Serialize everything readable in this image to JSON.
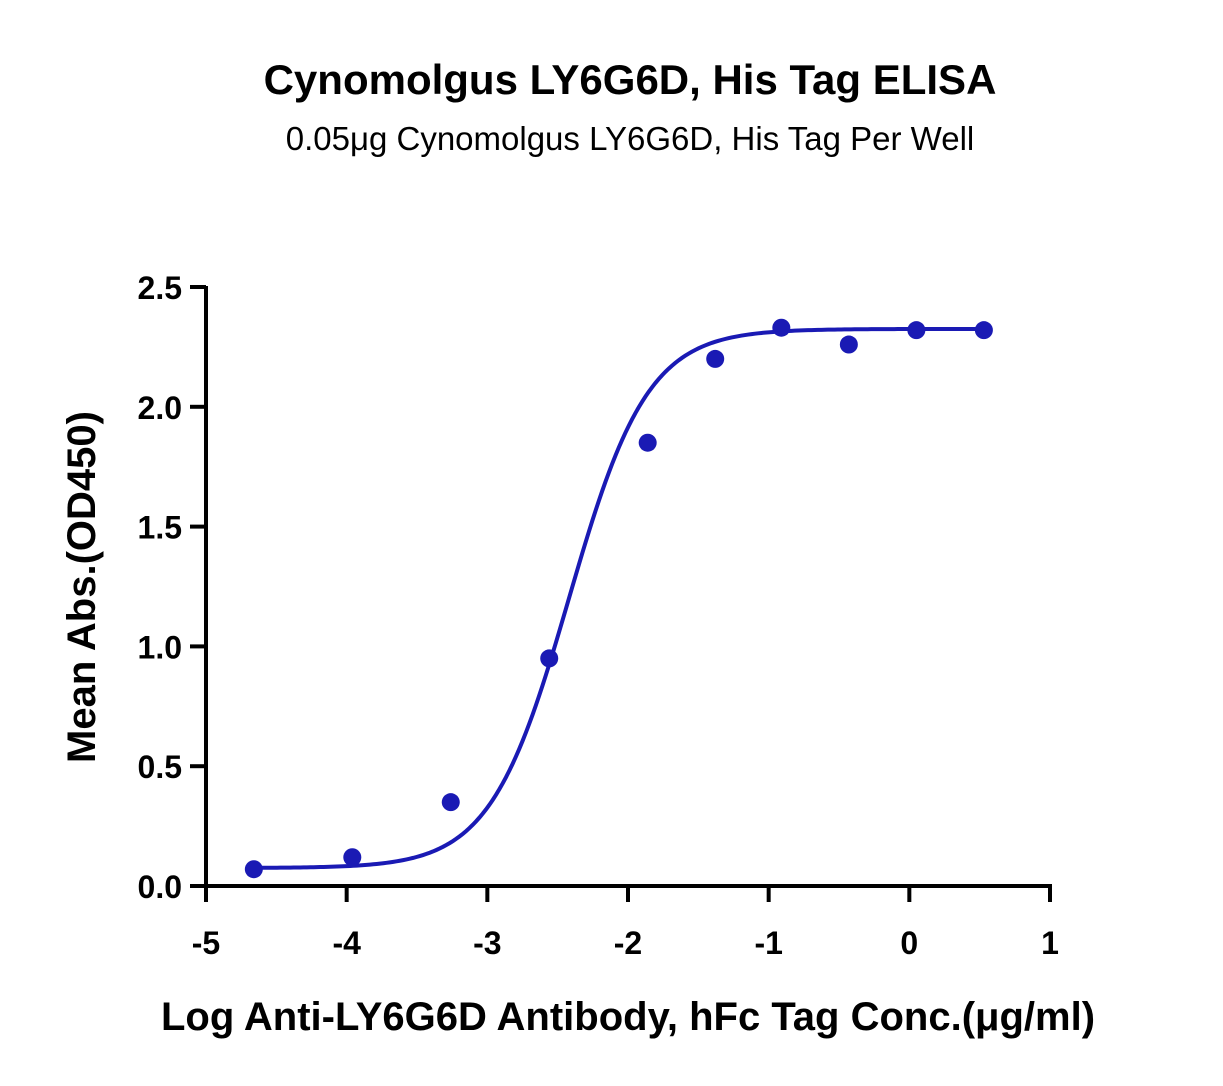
{
  "chart_data": {
    "type": "scatter",
    "title": "Cynomolgus LY6G6D, His Tag ELISA",
    "subtitle": "0.05μg Cynomolgus LY6G6D, His Tag Per Well",
    "xlabel": "Log Anti-LY6G6D Antibody, hFc Tag Conc.(μg/ml)",
    "ylabel": "Mean Abs.(OD450)",
    "xlim": [
      -5,
      1
    ],
    "ylim": [
      0,
      2.5
    ],
    "x_ticks": [
      -5,
      -4,
      -3,
      -2,
      -1,
      0,
      1
    ],
    "x_tick_labels": [
      "-5",
      "-4",
      "-3",
      "-2",
      "-1",
      "0",
      "1"
    ],
    "y_ticks": [
      0,
      0.5,
      1.0,
      1.5,
      2.0,
      2.5
    ],
    "y_tick_labels": [
      "0.0",
      "0.5",
      "1.0",
      "1.5",
      "2.0",
      "2.5"
    ],
    "grid": false,
    "color": "#1a1ab4",
    "series": [
      {
        "points": [
          {
            "x": -4.66,
            "y": 0.07
          },
          {
            "x": -3.96,
            "y": 0.12
          },
          {
            "x": -3.26,
            "y": 0.35
          },
          {
            "x": -2.56,
            "y": 0.95
          },
          {
            "x": -1.86,
            "y": 1.85
          },
          {
            "x": -1.38,
            "y": 2.2
          },
          {
            "x": -0.91,
            "y": 2.33
          },
          {
            "x": -0.43,
            "y": 2.26
          },
          {
            "x": 0.05,
            "y": 2.32
          },
          {
            "x": 0.53,
            "y": 2.32
          }
        ],
        "fit_curve": {
          "model": "4PL",
          "bottom": 0.075,
          "top": 2.325,
          "log_ec50": -2.42,
          "hill_slope": 1.55
        }
      }
    ]
  }
}
